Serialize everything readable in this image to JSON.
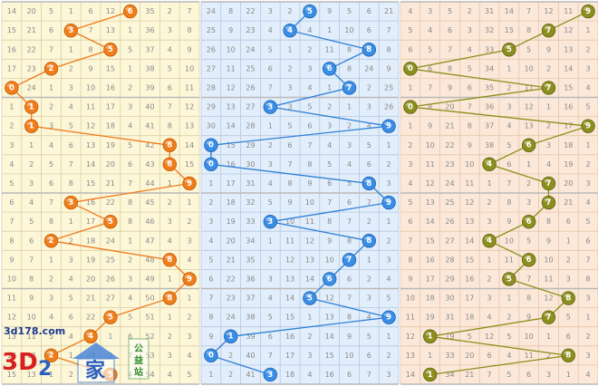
{
  "chart_data": {
    "type": "table",
    "title": "",
    "row_count": 20,
    "panels": [
      {
        "name": "hundreds",
        "colors": {
          "background": "#fdf7d8",
          "grid": "#d8d0a4",
          "ball": "#f07d1c",
          "ball_edge": "#c25a00",
          "line": "#ee7a1a"
        },
        "cells": [
          [
            14,
            20,
            5,
            1,
            6,
            12,
            8,
            35,
            2,
            7
          ],
          [
            15,
            21,
            6,
            2,
            7,
            13,
            1,
            36,
            3,
            8
          ],
          [
            16,
            22,
            7,
            1,
            8,
            14,
            5,
            37,
            4,
            9
          ],
          [
            17,
            23,
            2,
            2,
            9,
            15,
            1,
            38,
            5,
            10
          ],
          [
            6,
            24,
            1,
            3,
            10,
            16,
            2,
            39,
            6,
            11
          ],
          [
            1,
            1,
            2,
            4,
            11,
            17,
            3,
            40,
            7,
            12
          ],
          [
            2,
            1,
            3,
            5,
            12,
            18,
            4,
            41,
            8,
            13
          ],
          [
            3,
            1,
            4,
            6,
            13,
            19,
            5,
            42,
            8,
            14
          ],
          [
            4,
            2,
            5,
            7,
            14,
            20,
            6,
            43,
            8,
            15
          ],
          [
            5,
            3,
            6,
            8,
            15,
            21,
            7,
            44,
            1,
            9
          ],
          [
            6,
            4,
            7,
            3,
            16,
            22,
            8,
            45,
            2,
            1
          ],
          [
            7,
            5,
            8,
            1,
            17,
            23,
            8,
            46,
            3,
            2
          ],
          [
            8,
            6,
            2,
            2,
            18,
            24,
            1,
            47,
            4,
            3
          ],
          [
            9,
            7,
            1,
            3,
            19,
            25,
            2,
            48,
            8,
            4
          ],
          [
            10,
            8,
            2,
            4,
            20,
            26,
            3,
            49,
            1,
            9
          ],
          [
            11,
            9,
            3,
            5,
            21,
            27,
            4,
            50,
            8,
            1
          ],
          [
            12,
            10,
            4,
            6,
            22,
            5,
            5,
            51,
            1,
            2
          ],
          [
            13,
            11,
            5,
            4,
            23,
            1,
            6,
            52,
            2,
            3
          ],
          [
            14,
            12,
            2,
            1,
            24,
            2,
            7,
            53,
            3,
            4
          ],
          [
            15,
            13,
            1,
            2,
            25,
            3,
            4,
            54,
            4,
            5
          ]
        ],
        "draws": [
          6,
          3,
          5,
          2,
          0,
          1,
          1,
          8,
          8,
          9,
          3,
          5,
          2,
          8,
          9,
          8,
          5,
          4,
          2,
          5
        ]
      },
      {
        "name": "tens",
        "colors": {
          "background": "#e2eefb",
          "grid": "#b4c8e0",
          "ball": "#3a8ee6",
          "ball_edge": "#1d5fb0",
          "line": "#2f7fd8"
        },
        "cells": [
          [
            24,
            8,
            22,
            3,
            2,
            5,
            9,
            5,
            6,
            21
          ],
          [
            25,
            9,
            23,
            4,
            3,
            4,
            1,
            10,
            6,
            7
          ],
          [
            26,
            10,
            24,
            5,
            1,
            2,
            11,
            8,
            7,
            8
          ],
          [
            27,
            11,
            25,
            6,
            2,
            3,
            6,
            8,
            24,
            9
          ],
          [
            28,
            12,
            26,
            7,
            3,
            4,
            1,
            7,
            2,
            25
          ],
          [
            29,
            13,
            27,
            8,
            3,
            5,
            2,
            1,
            3,
            26
          ],
          [
            30,
            14,
            28,
            1,
            5,
            6,
            3,
            2,
            4,
            9
          ],
          [
            0,
            15,
            29,
            2,
            6,
            7,
            4,
            3,
            5,
            1
          ],
          [
            0,
            16,
            30,
            3,
            7,
            8,
            5,
            4,
            6,
            2
          ],
          [
            1,
            17,
            31,
            4,
            8,
            9,
            6,
            5,
            8,
            3
          ],
          [
            2,
            18,
            32,
            5,
            9,
            10,
            7,
            6,
            7,
            9
          ],
          [
            3,
            19,
            33,
            3,
            10,
            11,
            8,
            7,
            2,
            1
          ],
          [
            4,
            20,
            34,
            1,
            11,
            12,
            9,
            8,
            8,
            2
          ],
          [
            5,
            21,
            35,
            2,
            12,
            13,
            10,
            7,
            1,
            3
          ],
          [
            6,
            22,
            36,
            3,
            13,
            14,
            11,
            6,
            2,
            4
          ],
          [
            7,
            23,
            37,
            4,
            14,
            5,
            12,
            7,
            3,
            5
          ],
          [
            8,
            24,
            38,
            5,
            15,
            1,
            13,
            8,
            4,
            9
          ],
          [
            9,
            1,
            39,
            6,
            16,
            2,
            14,
            9,
            5,
            1
          ],
          [
            0,
            2,
            40,
            7,
            17,
            3,
            15,
            10,
            6,
            2
          ],
          [
            1,
            2,
            41,
            3,
            18,
            4,
            16,
            6,
            7,
            3
          ]
        ],
        "draws": [
          5,
          4,
          8,
          6,
          7,
          3,
          9,
          0,
          0,
          8,
          9,
          3,
          8,
          7,
          6,
          5,
          9,
          1,
          0,
          3
        ]
      },
      {
        "name": "units",
        "colors": {
          "background": "#fce8d8",
          "grid": "#e3c5ab",
          "ball": "#8c8f1e",
          "ball_edge": "#5e6110",
          "line": "#8a8d18"
        },
        "cells": [
          [
            4,
            3,
            5,
            2,
            31,
            14,
            7,
            12,
            11,
            9
          ],
          [
            5,
            4,
            6,
            3,
            32,
            15,
            8,
            7,
            12,
            1
          ],
          [
            6,
            5,
            7,
            4,
            33,
            16,
            5,
            9,
            13,
            2
          ],
          [
            0,
            6,
            8,
            5,
            34,
            1,
            10,
            2,
            14,
            3
          ],
          [
            1,
            7,
            9,
            6,
            35,
            2,
            11,
            7,
            15,
            4
          ],
          [
            0,
            8,
            20,
            7,
            36,
            3,
            12,
            1,
            16,
            5
          ],
          [
            1,
            9,
            21,
            8,
            37,
            4,
            13,
            2,
            17,
            9
          ],
          [
            2,
            10,
            22,
            9,
            38,
            5,
            6,
            3,
            18,
            1
          ],
          [
            3,
            11,
            23,
            10,
            4,
            6,
            1,
            4,
            19,
            2
          ],
          [
            4,
            12,
            24,
            11,
            1,
            7,
            2,
            7,
            20,
            3
          ],
          [
            5,
            13,
            25,
            12,
            2,
            8,
            3,
            7,
            21,
            4
          ],
          [
            6,
            14,
            26,
            13,
            3,
            9,
            4,
            8,
            6,
            5
          ],
          [
            7,
            15,
            27,
            14,
            4,
            10,
            5,
            9,
            1,
            6
          ],
          [
            8,
            16,
            28,
            15,
            1,
            11,
            6,
            10,
            2,
            7
          ],
          [
            9,
            17,
            29,
            16,
            2,
            5,
            7,
            11,
            3,
            8
          ],
          [
            10,
            18,
            30,
            17,
            3,
            1,
            8,
            12,
            4,
            3
          ],
          [
            11,
            19,
            31,
            18,
            4,
            2,
            9,
            7,
            5,
            1
          ],
          [
            12,
            1,
            19,
            5,
            12,
            5,
            10,
            1,
            6,
            2
          ],
          [
            13,
            1,
            33,
            20,
            6,
            4,
            11,
            2,
            8,
            3
          ],
          [
            14,
            1,
            34,
            21,
            7,
            5,
            6,
            3,
            1,
            4
          ]
        ],
        "draws": [
          9,
          7,
          5,
          0,
          7,
          0,
          9,
          6,
          4,
          7,
          7,
          6,
          4,
          6,
          5,
          8,
          7,
          1,
          8,
          1
        ]
      }
    ]
  },
  "watermark": {
    "site": "3d178.com",
    "brand_a": "3D",
    "brand_b": "2",
    "brand_c": "家",
    "tag": "公益站"
  }
}
